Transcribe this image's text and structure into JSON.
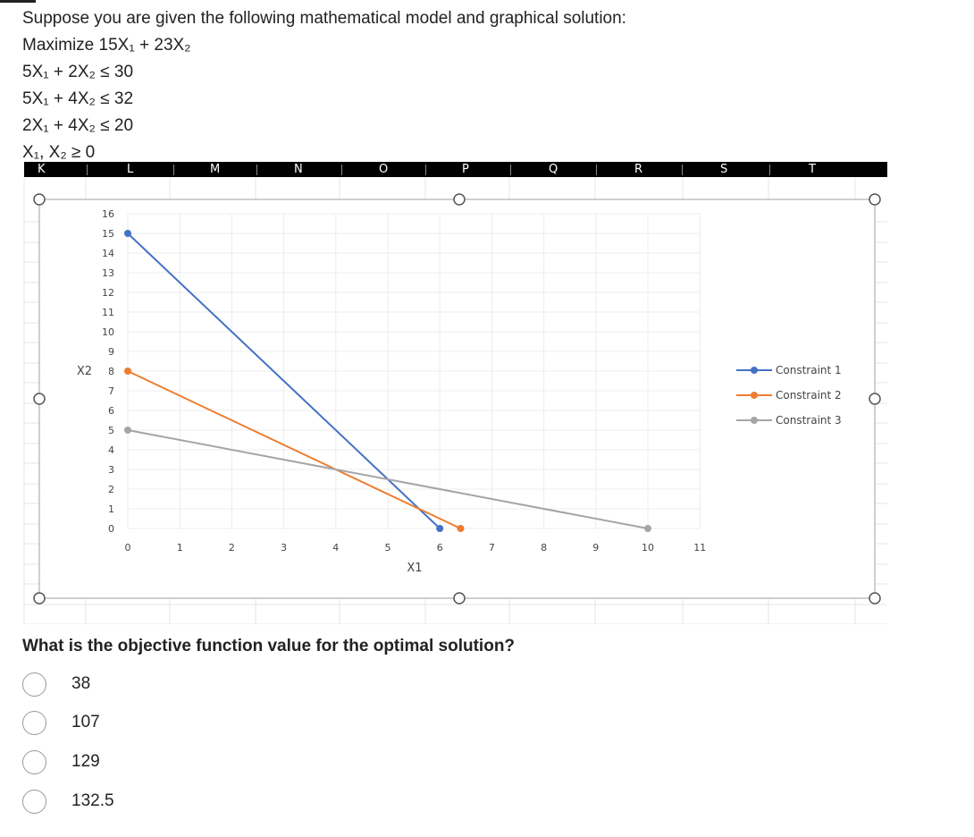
{
  "model": {
    "intro": "Suppose you are given the following mathematical model and graphical solution:",
    "objective": "Maximize 15X₁ + 23X₂",
    "constraints": [
      "5X₁ + 2X₂ ≤ 30",
      "5X₁ + 4X₂ ≤ 32",
      "2X₁ + 4X₂ ≤ 20",
      "X₁, X₂ ≥ 0"
    ]
  },
  "spreadsheet": {
    "columns": [
      "K",
      "L",
      "M",
      "N",
      "O",
      "P",
      "Q",
      "R",
      "S",
      "T"
    ]
  },
  "chart_data": {
    "type": "line",
    "xlabel": "X1",
    "ylabel": "X2",
    "xlim": [
      0,
      11
    ],
    "ylim": [
      0,
      16
    ],
    "x_ticks": [
      0,
      1,
      2,
      3,
      4,
      5,
      6,
      7,
      8,
      9,
      10,
      11
    ],
    "y_ticks": [
      0,
      1,
      2,
      3,
      4,
      5,
      6,
      7,
      8,
      9,
      10,
      11,
      12,
      13,
      14,
      15,
      16
    ],
    "grid": true,
    "legend_position": "right",
    "series": [
      {
        "name": "Constraint 1",
        "color": "#4472c4",
        "points": [
          [
            0,
            15
          ],
          [
            6,
            0
          ]
        ]
      },
      {
        "name": "Constraint 2",
        "color": "#ed7d31",
        "points": [
          [
            0,
            8
          ],
          [
            6.4,
            0
          ]
        ]
      },
      {
        "name": "Constraint 3",
        "color": "#a5a5a5",
        "points": [
          [
            0,
            5
          ],
          [
            10,
            0
          ]
        ]
      }
    ]
  },
  "question": {
    "text": "What is the objective function value for the optimal solution?",
    "options": [
      "38",
      "107",
      "129",
      "132.5"
    ]
  }
}
